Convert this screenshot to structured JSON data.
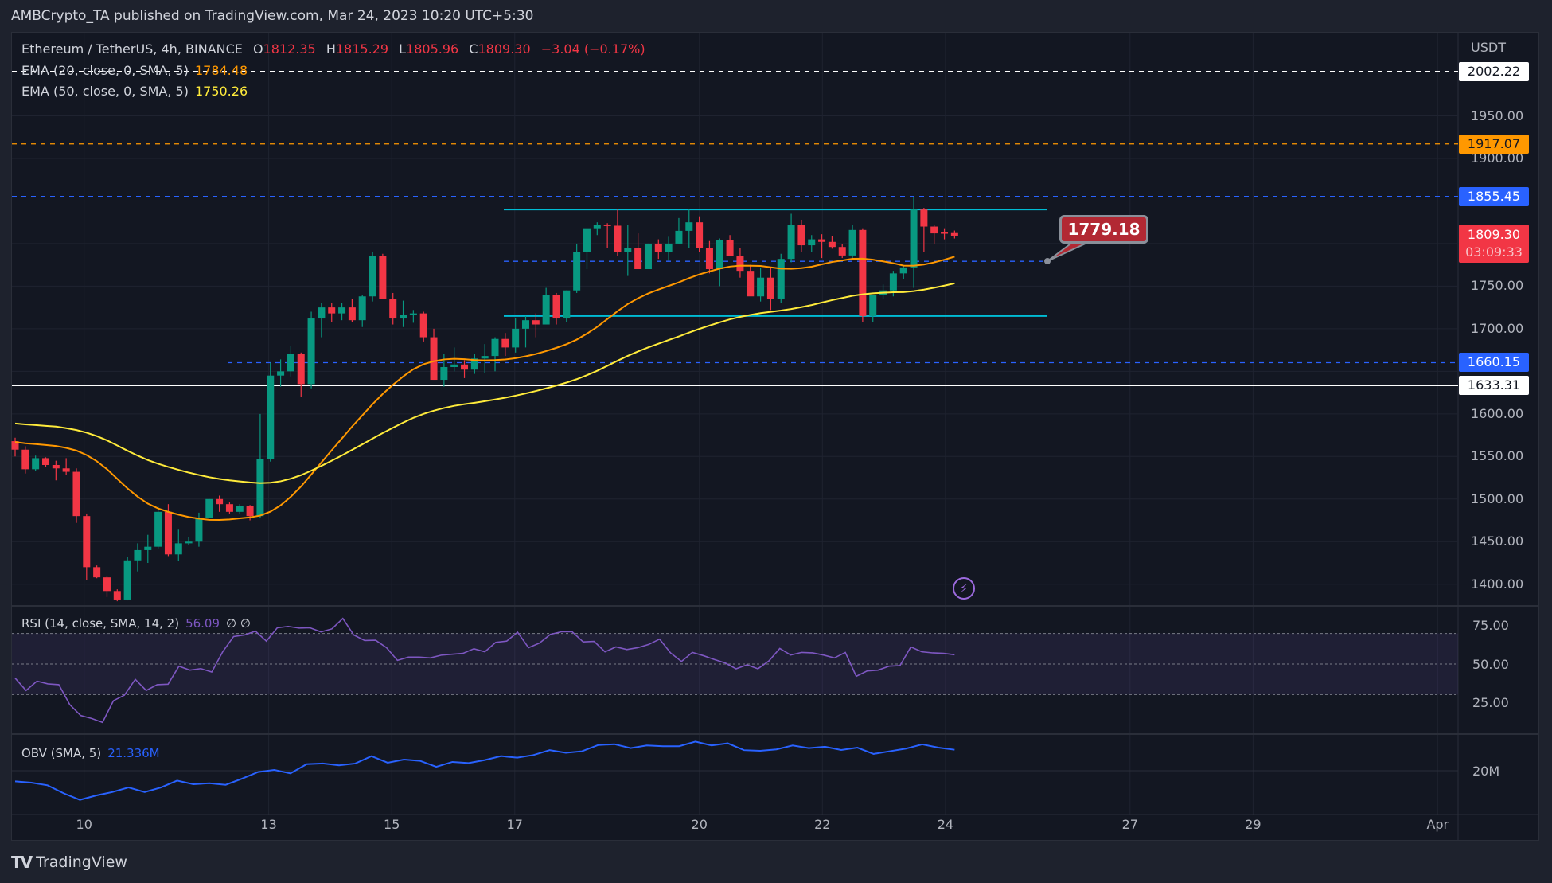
{
  "published": "AMBCrypto_TA published on TradingView.com, Mar 24, 2023 10:20 UTC+5:30",
  "legend": {
    "symbol": "Ethereum / TetherUS, 4h, BINANCE",
    "o_label": "O",
    "o": "1812.35",
    "h_label": "H",
    "h": "1815.29",
    "l_label": "L",
    "l": "1805.96",
    "c_label": "C",
    "c": "1809.30",
    "change": "−3.04 (−0.17%)",
    "ema20": "EMA (20, close, 0, SMA, 5)",
    "ema20_value": "1784.48",
    "ema50": "EMA (50, close, 0, SMA, 5)",
    "ema50_value": "1750.26",
    "rsi": "RSI (14, close, SMA, 14, 2)",
    "rsi_value": "56.09",
    "rsi_extra": "∅ ∅",
    "obv": "OBV (SMA, 5)",
    "obv_value": "21.336M"
  },
  "price_axis": {
    "currency": "USDT",
    "ticks": [
      "1950.00",
      "1900.00",
      "1750.00",
      "1700.00",
      "1600.00",
      "1550.00",
      "1500.00",
      "1450.00",
      "1400.00"
    ],
    "tags": {
      "level_2002": "2002.22",
      "level_1917": "1917.07",
      "level_1855": "1855.45",
      "current_price": "1809.30",
      "countdown": "03:09:33",
      "level_1660": "1660.15",
      "level_1633": "1633.31"
    }
  },
  "rsi_axis": [
    "75.00",
    "50.00",
    "25.00"
  ],
  "obv_axis": [
    "20M"
  ],
  "time_axis": [
    "10",
    "13",
    "15",
    "17",
    "20",
    "22",
    "24",
    "27",
    "29",
    "Apr"
  ],
  "callout": "1779.18",
  "footer_logo": "TradingView",
  "icons": {
    "alert": "lightning-icon",
    "logo": "tradingview-logo-icon"
  },
  "colors": {
    "up": "#089981",
    "down": "#f23645",
    "ema20": "#ff9800",
    "ema50": "#ffeb3b",
    "rsi": "#7e57c2",
    "obv": "#2962ff",
    "channel": "#00bcd4",
    "level_blue": "#2962ff",
    "level_orange": "#ff9800",
    "level_white": "#ffffff",
    "background": "#131722"
  },
  "chart_data": {
    "type": "candlestick",
    "interval": "4h",
    "x_start": "Mar 9",
    "x_end": "Apr",
    "ylim": [
      1380,
      2010
    ],
    "grid": true,
    "ohlc": [
      [
        1568,
        1572,
        1550,
        1558
      ],
      [
        1558,
        1562,
        1530,
        1535
      ],
      [
        1535,
        1551,
        1533,
        1548
      ],
      [
        1548,
        1549,
        1538,
        1540
      ],
      [
        1540,
        1545,
        1522,
        1536
      ],
      [
        1536,
        1548,
        1528,
        1532
      ],
      [
        1532,
        1536,
        1472,
        1480
      ],
      [
        1480,
        1483,
        1405,
        1420
      ],
      [
        1420,
        1422,
        1407,
        1408
      ],
      [
        1408,
        1410,
        1385,
        1392
      ],
      [
        1392,
        1394,
        1380,
        1382
      ],
      [
        1382,
        1432,
        1381,
        1428
      ],
      [
        1428,
        1448,
        1415,
        1440
      ],
      [
        1440,
        1458,
        1425,
        1444
      ],
      [
        1444,
        1492,
        1442,
        1485
      ],
      [
        1485,
        1494,
        1433,
        1435
      ],
      [
        1435,
        1464,
        1427,
        1448
      ],
      [
        1448,
        1455,
        1446,
        1450
      ],
      [
        1450,
        1484,
        1444,
        1478
      ],
      [
        1478,
        1500,
        1478,
        1500
      ],
      [
        1500,
        1504,
        1485,
        1494
      ],
      [
        1494,
        1496,
        1483,
        1485
      ],
      [
        1485,
        1494,
        1483,
        1492
      ],
      [
        1492,
        1493,
        1475,
        1480
      ],
      [
        1480,
        1600,
        1478,
        1547
      ],
      [
        1547,
        1660,
        1544,
        1645
      ],
      [
        1645,
        1664,
        1632,
        1650
      ],
      [
        1650,
        1680,
        1644,
        1670
      ],
      [
        1670,
        1672,
        1620,
        1635
      ],
      [
        1635,
        1720,
        1630,
        1712
      ],
      [
        1712,
        1730,
        1690,
        1725
      ],
      [
        1725,
        1730,
        1708,
        1718
      ],
      [
        1718,
        1730,
        1710,
        1725
      ],
      [
        1725,
        1735,
        1708,
        1710
      ],
      [
        1710,
        1740,
        1702,
        1738
      ],
      [
        1738,
        1790,
        1732,
        1785
      ],
      [
        1785,
        1788,
        1735,
        1735
      ],
      [
        1735,
        1742,
        1705,
        1712
      ],
      [
        1712,
        1733,
        1702,
        1716
      ],
      [
        1716,
        1722,
        1707,
        1718
      ],
      [
        1718,
        1720,
        1685,
        1690
      ],
      [
        1690,
        1700,
        1640,
        1640
      ],
      [
        1640,
        1670,
        1632,
        1655
      ],
      [
        1655,
        1678,
        1650,
        1658
      ],
      [
        1658,
        1663,
        1642,
        1652
      ],
      [
        1652,
        1670,
        1647,
        1665
      ],
      [
        1665,
        1682,
        1648,
        1668
      ],
      [
        1668,
        1690,
        1650,
        1688
      ],
      [
        1688,
        1695,
        1668,
        1678
      ],
      [
        1678,
        1712,
        1672,
        1700
      ],
      [
        1700,
        1715,
        1678,
        1710
      ],
      [
        1710,
        1718,
        1690,
        1705
      ],
      [
        1705,
        1748,
        1705,
        1740
      ],
      [
        1740,
        1742,
        1705,
        1712
      ],
      [
        1712,
        1745,
        1708,
        1745
      ],
      [
        1745,
        1800,
        1742,
        1790
      ],
      [
        1790,
        1815,
        1770,
        1818
      ],
      [
        1818,
        1825,
        1810,
        1822
      ],
      [
        1822,
        1824,
        1795,
        1821
      ],
      [
        1821,
        1840,
        1785,
        1790
      ],
      [
        1790,
        1822,
        1762,
        1795
      ],
      [
        1795,
        1812,
        1775,
        1770
      ],
      [
        1770,
        1800,
        1770,
        1800
      ],
      [
        1800,
        1805,
        1782,
        1790
      ],
      [
        1790,
        1808,
        1780,
        1800
      ],
      [
        1800,
        1830,
        1800,
        1815
      ],
      [
        1815,
        1840,
        1795,
        1825
      ],
      [
        1825,
        1832,
        1790,
        1795
      ],
      [
        1795,
        1803,
        1765,
        1770
      ],
      [
        1770,
        1806,
        1750,
        1804
      ],
      [
        1804,
        1810,
        1785,
        1785
      ],
      [
        1785,
        1795,
        1760,
        1768
      ],
      [
        1768,
        1775,
        1740,
        1738
      ],
      [
        1738,
        1772,
        1732,
        1760
      ],
      [
        1760,
        1772,
        1722,
        1735
      ],
      [
        1735,
        1788,
        1730,
        1782
      ],
      [
        1782,
        1835,
        1778,
        1822
      ],
      [
        1822,
        1828,
        1790,
        1798
      ],
      [
        1798,
        1810,
        1790,
        1805
      ],
      [
        1805,
        1811,
        1783,
        1802
      ],
      [
        1802,
        1809,
        1794,
        1796
      ],
      [
        1796,
        1799,
        1783,
        1786
      ],
      [
        1786,
        1822,
        1782,
        1816
      ],
      [
        1816,
        1818,
        1708,
        1715
      ],
      [
        1715,
        1740,
        1708,
        1740
      ],
      [
        1740,
        1752,
        1735,
        1745
      ],
      [
        1745,
        1768,
        1738,
        1765
      ],
      [
        1765,
        1775,
        1758,
        1772
      ],
      [
        1772,
        1855,
        1748,
        1840
      ],
      [
        1840,
        1842,
        1790,
        1820
      ],
      [
        1820,
        1822,
        1800,
        1812
      ],
      [
        1813,
        1818,
        1805,
        1812
      ],
      [
        1812.35,
        1815.29,
        1805.96,
        1809.3
      ]
    ],
    "rsi": [
      40.8,
      32.7,
      38.8,
      37,
      36.5,
      23.5,
      16.3,
      14.4,
      11.8,
      26,
      29.6,
      40,
      32.7,
      36.5,
      36.8,
      48.6,
      46,
      47,
      44.8,
      58,
      68,
      69,
      71.5,
      65,
      73.7,
      74.6,
      73.5,
      73.7,
      71,
      73,
      79.8,
      69,
      65.4,
      65.6,
      60.7,
      52.4,
      54.5,
      54.5,
      54,
      55.8,
      56.4,
      57,
      60,
      58,
      64.2,
      65,
      70.8,
      60.7,
      63.7,
      69.4,
      71.1,
      71.1,
      64.5,
      64.8,
      58,
      61.2,
      59.5,
      60.7,
      62.8,
      66.3,
      57.3,
      51.7,
      57.6,
      55.5,
      53,
      50.7,
      46.9,
      49.5,
      46.9,
      52,
      60.2,
      55.9,
      57.6,
      57.3,
      55.9,
      54,
      57.6,
      42,
      45.5,
      46,
      48.6,
      49,
      61.2,
      58,
      57.3,
      57,
      56.09
    ],
    "rsi_bands": [
      70,
      50,
      30
    ],
    "obv_millions": [
      19.32,
      19.24,
      19.07,
      18.56,
      18.14,
      18.42,
      18.64,
      18.93,
      18.64,
      18.93,
      19.37,
      19.14,
      19.2,
      19.1,
      19.49,
      19.92,
      20.05,
      19.83,
      20.42,
      20.46,
      20.34,
      20.46,
      20.93,
      20.51,
      20.71,
      20.63,
      20.25,
      20.56,
      20.49,
      20.68,
      20.93,
      20.83,
      21.0,
      21.31,
      21.14,
      21.24,
      21.64,
      21.69,
      21.44,
      21.61,
      21.56,
      21.56,
      21.86,
      21.61,
      21.75,
      21.31,
      21.27,
      21.36,
      21.61,
      21.44,
      21.53,
      21.32,
      21.47,
      21.07,
      21.24,
      21.41,
      21.68,
      21.47,
      21.336
    ],
    "horizontal_levels": [
      {
        "price": 2002.22,
        "style": "dashed",
        "color": "#ffffff"
      },
      {
        "price": 1917.07,
        "style": "dashed",
        "color": "#ff9800"
      },
      {
        "price": 1855.45,
        "style": "dashed",
        "color": "#2962ff"
      },
      {
        "price": 1779.18,
        "style": "dashed",
        "color": "#2962ff"
      },
      {
        "price": 1660.15,
        "style": "dashed",
        "color": "#2962ff"
      },
      {
        "price": 1633.31,
        "style": "solid",
        "color": "#ffffff"
      }
    ],
    "channel": {
      "top": 1840,
      "bottom": 1715,
      "from": "Mar 17",
      "to": "Mar 25"
    }
  }
}
